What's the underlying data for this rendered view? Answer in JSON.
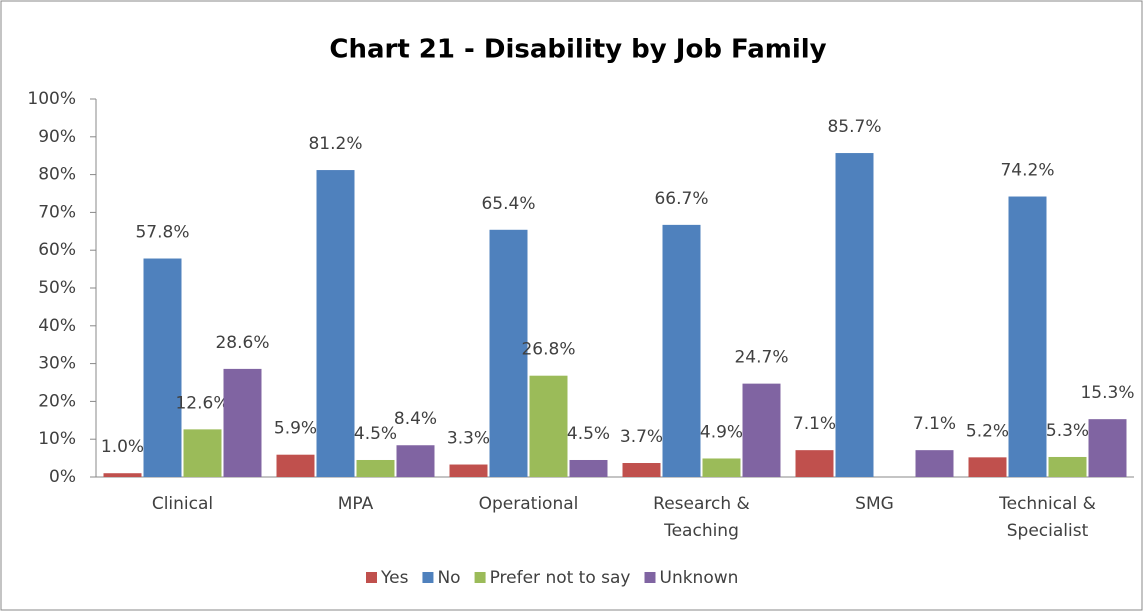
{
  "chart_data": {
    "type": "bar",
    "title": "Chart 21 - Disability by Job Family",
    "categories": [
      "Clinical",
      "MPA",
      "Operational",
      "Research & Teaching",
      "SMG",
      "Technical & Specialist"
    ],
    "series": [
      {
        "name": "Yes",
        "color": "#c0504d",
        "values": [
          1.0,
          5.9,
          3.3,
          3.7,
          7.1,
          5.2
        ],
        "value_labels": [
          "1.0%",
          "5.9%",
          "3.3%",
          "3.7%",
          "7.1%",
          "5.2%"
        ]
      },
      {
        "name": "No",
        "color": "#4f81bd",
        "values": [
          57.8,
          81.2,
          65.4,
          66.7,
          85.7,
          74.2
        ],
        "value_labels": [
          "57.8%",
          "81.2%",
          "65.4%",
          "66.7%",
          "85.7%",
          "74.2%"
        ]
      },
      {
        "name": "Prefer not to say",
        "color": "#9bbb59",
        "values": [
          12.6,
          4.5,
          26.8,
          4.9,
          null,
          5.3
        ],
        "value_labels": [
          "12.6%",
          "4.5%",
          "26.8%",
          "4.9%",
          null,
          "5.3%"
        ]
      },
      {
        "name": "Unknown",
        "color": "#8064a2",
        "values": [
          28.6,
          8.4,
          4.5,
          24.7,
          7.1,
          15.3
        ],
        "value_labels": [
          "28.6%",
          "8.4%",
          "4.5%",
          "24.7%",
          "7.1%",
          "15.3%"
        ]
      }
    ],
    "ylim": [
      0,
      100
    ],
    "yticks": [
      {
        "value": 0,
        "label": "0%"
      },
      {
        "value": 10,
        "label": "10%"
      },
      {
        "value": 20,
        "label": "20%"
      },
      {
        "value": 30,
        "label": "30%"
      },
      {
        "value": 40,
        "label": "40%"
      },
      {
        "value": 50,
        "label": "50%"
      },
      {
        "value": 60,
        "label": "60%"
      },
      {
        "value": 70,
        "label": "70%"
      },
      {
        "value": 80,
        "label": "80%"
      },
      {
        "value": 90,
        "label": "90%"
      },
      {
        "value": 100,
        "label": "100%"
      }
    ],
    "legend": "bottom"
  }
}
